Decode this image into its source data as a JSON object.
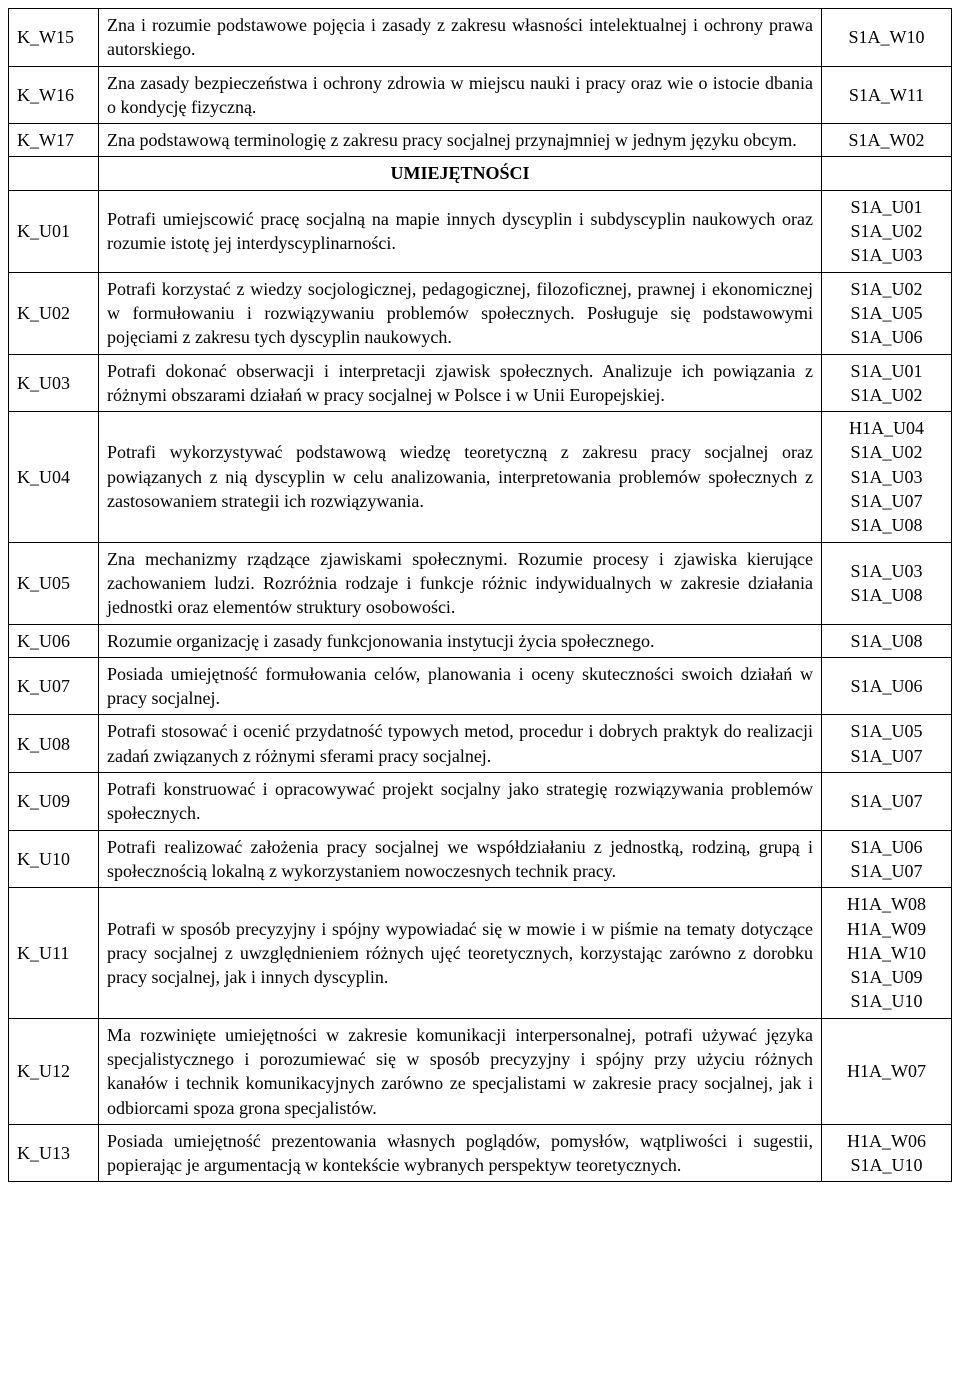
{
  "section_header": "UMIEJĘTNOŚCI",
  "rows": [
    {
      "code": "K_W15",
      "desc": "Zna i rozumie podstawowe pojęcia i zasady z zakresu własności intelektualnej i ochrony prawa autorskiego.",
      "refs": [
        "S1A_W10"
      ]
    },
    {
      "code": "K_W16",
      "desc": "Zna zasady bezpieczeństwa i ochrony zdrowia w miejscu nauki i pracy oraz wie o istocie dbania o kondycję fizyczną.",
      "refs": [
        "S1A_W11"
      ]
    },
    {
      "code": "K_W17",
      "desc": "Zna podstawową terminologię z zakresu pracy socjalnej przynajmniej w jednym języku obcym.",
      "refs": [
        "S1A_W02"
      ]
    },
    {
      "section": true
    },
    {
      "code": "K_U01",
      "desc": "Potrafi umiejscowić pracę socjalną na mapie innych dyscyplin i subdyscyplin naukowych oraz rozumie istotę jej interdyscyplinarności.",
      "refs": [
        "S1A_U01",
        "S1A_U02",
        "S1A_U03"
      ]
    },
    {
      "code": "K_U02",
      "desc": "Potrafi korzystać z wiedzy socjologicznej, pedagogicznej, filozoficznej, prawnej i ekonomicznej w formułowaniu i rozwiązywaniu problemów społecznych. Posługuje się podstawowymi pojęciami z zakresu tych dyscyplin naukowych.",
      "refs": [
        "S1A_U02",
        "S1A_U05",
        "S1A_U06"
      ]
    },
    {
      "code": "K_U03",
      "desc": "Potrafi dokonać obserwacji i interpretacji zjawisk społecznych. Analizuje ich powiązania z różnymi obszarami działań w pracy socjalnej w Polsce i w Unii Europejskiej.",
      "refs": [
        "S1A_U01",
        "S1A_U02"
      ]
    },
    {
      "code": "K_U04",
      "desc": "Potrafi wykorzystywać podstawową wiedzę teoretyczną z zakresu pracy socjalnej oraz powiązanych z nią dyscyplin w celu analizowania, interpretowania problemów społecznych z zastosowaniem strategii ich rozwiązywania.",
      "refs": [
        "H1A_U04",
        "S1A_U02",
        "S1A_U03",
        "S1A_U07",
        "S1A_U08"
      ]
    },
    {
      "code": "K_U05",
      "desc": "Zna mechanizmy rządzące zjawiskami społecznymi. Rozumie procesy i zjawiska kierujące zachowaniem ludzi. Rozróżnia rodzaje i funkcje różnic indywidualnych w zakresie działania jednostki oraz elementów struktury osobowości.",
      "refs": [
        "S1A_U03",
        "S1A_U08"
      ]
    },
    {
      "code": "K_U06",
      "desc": "Rozumie organizację i zasady funkcjonowania instytucji życia społecznego.",
      "refs": [
        "S1A_U08"
      ]
    },
    {
      "code": "K_U07",
      "desc": "Posiada umiejętność formułowania celów, planowania i oceny skuteczności swoich działań w pracy socjalnej.",
      "refs": [
        "S1A_U06"
      ]
    },
    {
      "code": "K_U08",
      "desc": "Potrafi stosować i ocenić przydatność typowych metod, procedur i dobrych praktyk do realizacji zadań związanych z różnymi sferami pracy socjalnej.",
      "refs": [
        "S1A_U05",
        "S1A_U07"
      ]
    },
    {
      "code": "K_U09",
      "desc": "Potrafi konstruować i opracowywać projekt socjalny jako strategię rozwiązywania problemów społecznych.",
      "refs": [
        "S1A_U07"
      ]
    },
    {
      "code": "K_U10",
      "desc": "Potrafi realizować założenia pracy socjalnej we współdziałaniu z jednostką, rodziną, grupą i społecznością lokalną z wykorzystaniem nowoczesnych technik pracy.",
      "refs": [
        "S1A_U06",
        "S1A_U07"
      ]
    },
    {
      "code": "K_U11",
      "desc": "Potrafi w sposób precyzyjny i spójny wypowiadać się w mowie i w piśmie na tematy dotyczące pracy socjalnej z uwzględnieniem różnych ujęć teoretycznych, korzystając zarówno z dorobku pracy socjalnej, jak i innych dyscyplin.",
      "refs": [
        "H1A_W08",
        "H1A_W09",
        "H1A_W10",
        "S1A_U09",
        "S1A_U10"
      ]
    },
    {
      "code": "K_U12",
      "desc": "Ma rozwinięte umiejętności w zakresie komunikacji interpersonalnej, potrafi używać języka specjalistycznego i porozumiewać się w sposób precyzyjny i spójny przy użyciu różnych kanałów i technik komunikacyjnych zarówno ze specjalistami w zakresie pracy socjalnej, jak i odbiorcami spoza grona specjalistów.",
      "refs": [
        "H1A_W07"
      ]
    },
    {
      "code": "K_U13",
      "desc": "Posiada umiejętność prezentowania własnych poglądów, pomysłów, wątpliwości i sugestii, popierając je argumentacją w kontekście wybranych perspektyw teoretycznych.",
      "refs": [
        "H1A_W06",
        "S1A_U10"
      ]
    }
  ]
}
